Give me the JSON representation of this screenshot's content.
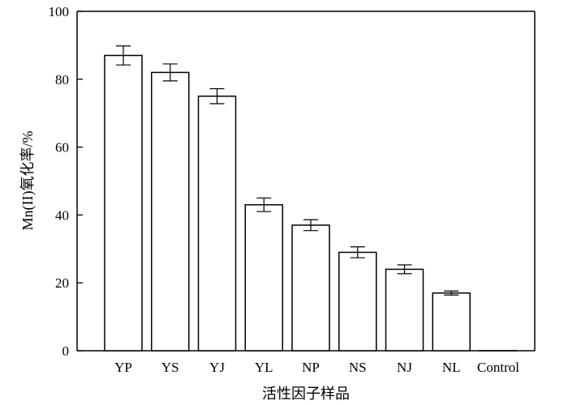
{
  "chart_data": {
    "type": "bar",
    "title": "",
    "xlabel": "活性因子样品",
    "ylabel": "Mn(II)氧化率/%",
    "categories": [
      "YP",
      "YS",
      "YJ",
      "YL",
      "NP",
      "NS",
      "NJ",
      "NL",
      "Control"
    ],
    "values": [
      87,
      82,
      75,
      43,
      37,
      29,
      24,
      17,
      0
    ],
    "errors": [
      2.8,
      2.5,
      2.2,
      2.0,
      1.6,
      1.6,
      1.3,
      0.6,
      0
    ],
    "ylim": [
      0,
      100
    ],
    "yticks": [
      0,
      20,
      40,
      60,
      80,
      100
    ],
    "grid": false,
    "legend": false,
    "bar_fill": "#ffffff",
    "bar_stroke": "#000000"
  }
}
